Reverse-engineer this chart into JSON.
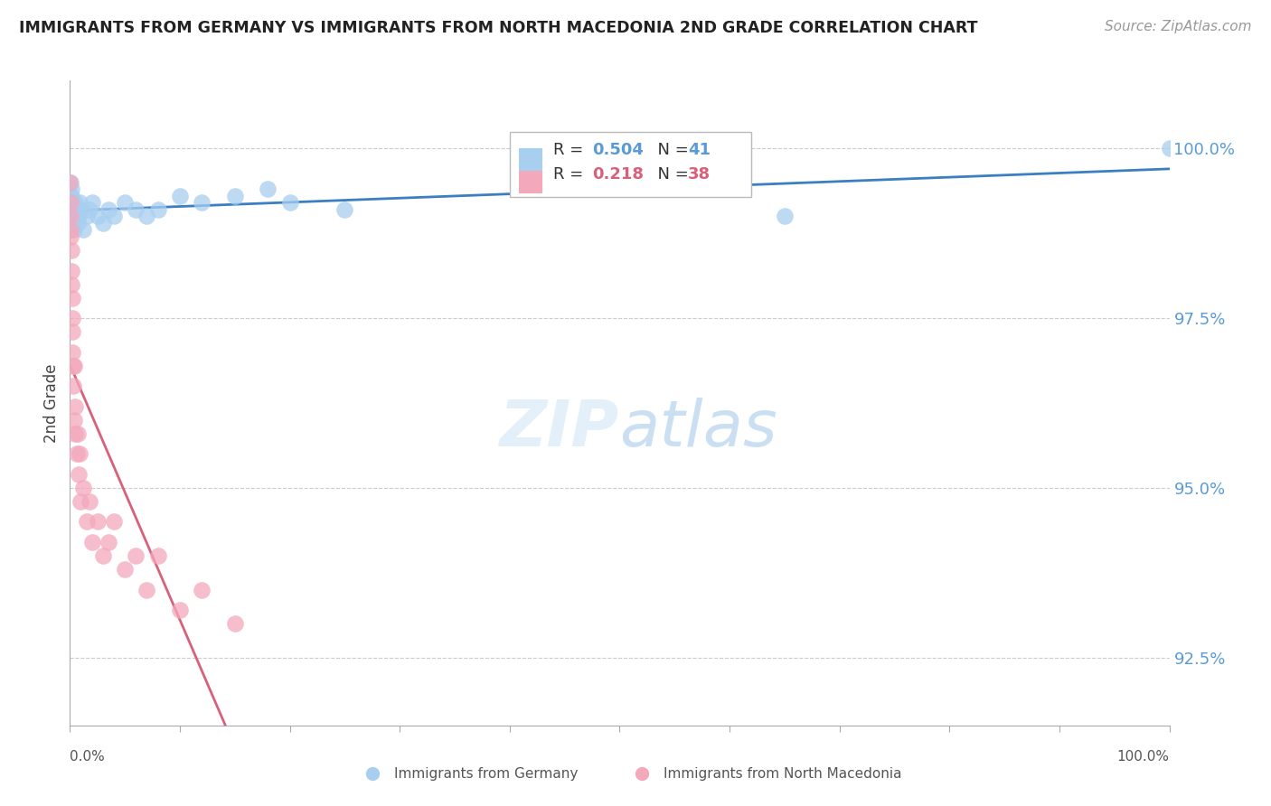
{
  "title": "IMMIGRANTS FROM GERMANY VS IMMIGRANTS FROM NORTH MACEDONIA 2ND GRADE CORRELATION CHART",
  "source": "Source: ZipAtlas.com",
  "ylabel": "2nd Grade",
  "ytick_values": [
    92.5,
    95.0,
    97.5,
    100.0
  ],
  "R_germany": 0.504,
  "N_germany": 41,
  "R_macedonia": 0.218,
  "N_macedonia": 38,
  "color_germany": "#a8cef0",
  "color_macedonia": "#f4a8bc",
  "trendline_germany": "#3a7fc1",
  "trendline_macedonia": "#d9607a",
  "background": "#ffffff",
  "grid_color": "#cccccc",
  "right_label_color": "#5b9bd5",
  "germany_x": [
    0.0,
    0.05,
    0.08,
    0.1,
    0.12,
    0.15,
    0.18,
    0.2,
    0.22,
    0.25,
    0.28,
    0.3,
    0.35,
    0.4,
    0.45,
    0.5,
    0.6,
    0.7,
    0.8,
    0.9,
    1.0,
    1.2,
    1.5,
    1.8,
    2.0,
    2.5,
    3.0,
    3.5,
    4.0,
    5.0,
    6.0,
    7.0,
    8.0,
    10.0,
    12.0,
    15.0,
    18.0,
    20.0,
    25.0,
    65.0,
    100.0
  ],
  "germany_y": [
    99.0,
    99.5,
    99.3,
    99.4,
    99.2,
    99.3,
    99.1,
    99.2,
    99.0,
    99.1,
    99.0,
    98.9,
    99.1,
    98.8,
    99.0,
    99.2,
    99.1,
    98.9,
    99.0,
    99.2,
    99.1,
    98.8,
    99.0,
    99.1,
    99.2,
    99.0,
    98.9,
    99.1,
    99.0,
    99.2,
    99.1,
    99.0,
    99.1,
    99.3,
    99.2,
    99.3,
    99.4,
    99.2,
    99.1,
    99.0,
    100.0
  ],
  "macedonia_x": [
    0.0,
    0.02,
    0.05,
    0.07,
    0.08,
    0.1,
    0.12,
    0.15,
    0.18,
    0.2,
    0.22,
    0.25,
    0.28,
    0.3,
    0.35,
    0.4,
    0.45,
    0.5,
    0.6,
    0.7,
    0.8,
    0.9,
    1.0,
    1.2,
    1.5,
    1.8,
    2.0,
    2.5,
    3.0,
    3.5,
    4.0,
    5.0,
    6.0,
    7.0,
    8.0,
    10.0,
    12.0,
    15.0
  ],
  "macedonia_y": [
    99.5,
    99.2,
    99.0,
    98.8,
    98.7,
    98.5,
    98.2,
    98.0,
    97.8,
    97.5,
    97.3,
    97.0,
    96.8,
    96.5,
    96.8,
    96.0,
    96.2,
    95.8,
    95.5,
    95.8,
    95.2,
    95.5,
    94.8,
    95.0,
    94.5,
    94.8,
    94.2,
    94.5,
    94.0,
    94.2,
    94.5,
    93.8,
    94.0,
    93.5,
    94.0,
    93.2,
    93.5,
    93.0
  ]
}
